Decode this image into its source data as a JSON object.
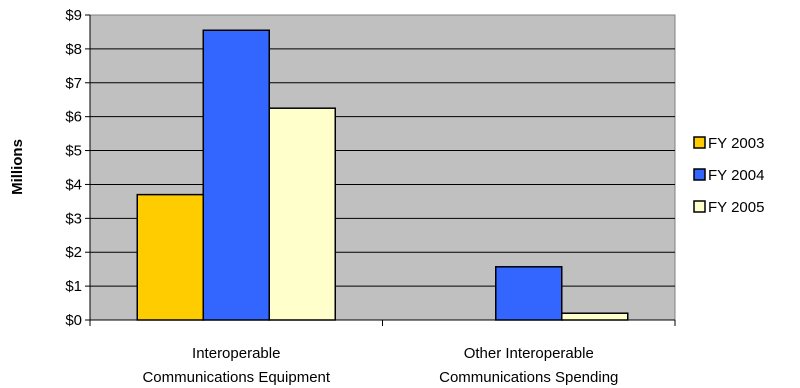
{
  "chart_data": {
    "type": "bar",
    "ylabel": "Millions",
    "ylim": [
      0,
      9
    ],
    "yticks": [
      "$0",
      "$1",
      "$2",
      "$3",
      "$4",
      "$5",
      "$6",
      "$7",
      "$8",
      "$9"
    ],
    "categories": [
      [
        "Interoperable",
        "Communications Equipment"
      ],
      [
        "Other Interoperable",
        "Communications Spending"
      ]
    ],
    "series": [
      {
        "name": "FY 2003",
        "values": [
          3.7,
          0
        ],
        "color": "#FFCC00"
      },
      {
        "name": "FY 2004",
        "values": [
          8.55,
          1.57
        ],
        "color": "#3366FF"
      },
      {
        "name": "FY 2005",
        "values": [
          6.25,
          0.2
        ],
        "color": "#FFFFCC"
      }
    ],
    "plot_background": "#C0C0C0",
    "grid": true,
    "legend_position": "right"
  }
}
